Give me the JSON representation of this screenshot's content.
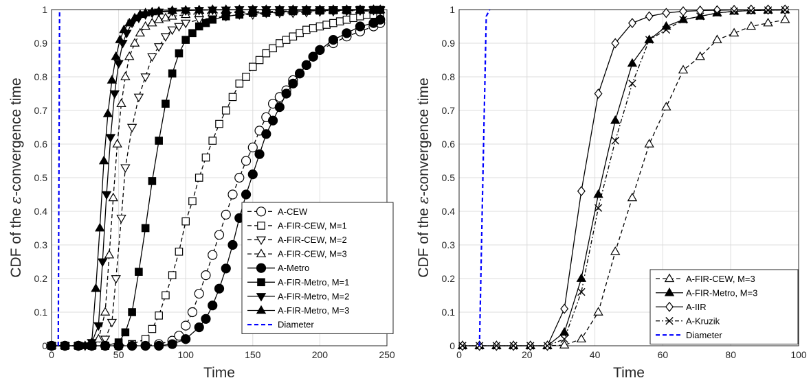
{
  "chart_data": [
    {
      "type": "line",
      "xlabel": "Time",
      "ylabel_prefix": "CDF of the ",
      "ylabel_eps": "ε",
      "ylabel_suffix": "-convergence time",
      "xlim": [
        0,
        250
      ],
      "ylim": [
        0,
        1
      ],
      "xticks": [
        "0",
        "50",
        "100",
        "150",
        "200",
        "250"
      ],
      "yticks": [
        "0",
        "0.1",
        "0.2",
        "0.3",
        "0.4",
        "0.5",
        "0.6",
        "0.7",
        "0.8",
        "0.9",
        "1"
      ],
      "grid": true,
      "legend_position": "bottom-right",
      "series": [
        {
          "name": "A-CEW",
          "dash": "dashed",
          "marker": "circle-open",
          "color": "#000000",
          "x": [
            0,
            10,
            20,
            30,
            40,
            50,
            60,
            70,
            80,
            90,
            95,
            100,
            105,
            110,
            115,
            120,
            125,
            130,
            135,
            140,
            145,
            150,
            155,
            160,
            165,
            170,
            175,
            180,
            185,
            190,
            195,
            200,
            210,
            220,
            230,
            240,
            245
          ],
          "y": [
            0,
            0,
            0,
            0,
            0,
            0,
            0,
            0,
            0.005,
            0.015,
            0.03,
            0.06,
            0.1,
            0.155,
            0.21,
            0.27,
            0.33,
            0.39,
            0.45,
            0.5,
            0.55,
            0.59,
            0.64,
            0.68,
            0.72,
            0.74,
            0.76,
            0.79,
            0.81,
            0.835,
            0.86,
            0.88,
            0.9,
            0.92,
            0.935,
            0.95,
            0.96
          ]
        },
        {
          "name": "A-FIR-CEW, M=1",
          "dash": "dashed",
          "marker": "square-open",
          "color": "#000000",
          "x": [
            0,
            10,
            20,
            30,
            40,
            50,
            60,
            70,
            75,
            80,
            85,
            90,
            95,
            100,
            105,
            110,
            115,
            120,
            125,
            130,
            135,
            140,
            145,
            150,
            155,
            160,
            165,
            170,
            175,
            180,
            185,
            190,
            195,
            200,
            205,
            210,
            215,
            220,
            225,
            230,
            235,
            240,
            245
          ],
          "y": [
            0,
            0,
            0,
            0,
            0,
            0,
            0.005,
            0.02,
            0.05,
            0.09,
            0.15,
            0.21,
            0.28,
            0.37,
            0.43,
            0.5,
            0.56,
            0.61,
            0.66,
            0.7,
            0.74,
            0.78,
            0.8,
            0.83,
            0.85,
            0.87,
            0.885,
            0.9,
            0.91,
            0.92,
            0.93,
            0.94,
            0.945,
            0.95,
            0.955,
            0.96,
            0.965,
            0.97,
            0.975,
            0.98,
            0.985,
            0.985,
            0.99
          ]
        },
        {
          "name": "A-FIR-CEW, M=2",
          "dash": "dashed",
          "marker": "triangle-down-open",
          "color": "#000000",
          "x": [
            0,
            10,
            20,
            30,
            40,
            45,
            48,
            52,
            55,
            60,
            65,
            70,
            75,
            80,
            85,
            90,
            95,
            100,
            110,
            120,
            130,
            140,
            150,
            160,
            170,
            180,
            190,
            200,
            210,
            220,
            230,
            240,
            245
          ],
          "y": [
            0,
            0,
            0,
            0,
            0.02,
            0.07,
            0.2,
            0.38,
            0.53,
            0.65,
            0.74,
            0.8,
            0.86,
            0.89,
            0.92,
            0.94,
            0.95,
            0.96,
            0.97,
            0.975,
            0.98,
            0.985,
            0.985,
            0.99,
            0.99,
            0.99,
            0.992,
            0.994,
            0.995,
            0.996,
            0.997,
            0.998,
            0.998
          ]
        },
        {
          "name": "A-FIR-CEW, M=3",
          "dash": "dashed",
          "marker": "triangle-up-open",
          "color": "#000000",
          "x": [
            0,
            10,
            20,
            30,
            35,
            40,
            43,
            46,
            49,
            52,
            55,
            58,
            62,
            66,
            70,
            75,
            80,
            85,
            90,
            100,
            110,
            120,
            130,
            140,
            150,
            160,
            170,
            180,
            190,
            200,
            210,
            220,
            230,
            240,
            245
          ],
          "y": [
            0,
            0,
            0,
            0,
            0.02,
            0.1,
            0.27,
            0.44,
            0.6,
            0.72,
            0.8,
            0.86,
            0.9,
            0.93,
            0.95,
            0.96,
            0.97,
            0.975,
            0.98,
            0.985,
            0.988,
            0.99,
            0.99,
            0.992,
            0.993,
            0.994,
            0.995,
            0.996,
            0.996,
            0.997,
            0.997,
            0.998,
            0.998,
            0.999,
            0.999
          ]
        },
        {
          "name": "A-Metro",
          "dash": "solid",
          "marker": "circle-filled",
          "color": "#000000",
          "x": [
            0,
            10,
            20,
            30,
            40,
            50,
            60,
            70,
            80,
            90,
            100,
            110,
            115,
            120,
            125,
            130,
            135,
            140,
            145,
            150,
            155,
            160,
            165,
            170,
            175,
            180,
            185,
            190,
            195,
            200,
            210,
            220,
            230,
            240,
            245
          ],
          "y": [
            0,
            0,
            0,
            0,
            0,
            0,
            0,
            0,
            0,
            0.005,
            0.02,
            0.055,
            0.08,
            0.12,
            0.17,
            0.23,
            0.3,
            0.38,
            0.45,
            0.51,
            0.57,
            0.63,
            0.67,
            0.71,
            0.75,
            0.78,
            0.81,
            0.835,
            0.86,
            0.88,
            0.91,
            0.93,
            0.95,
            0.96,
            0.97
          ]
        },
        {
          "name": "A-FIR-Metro, M=1",
          "dash": "solid",
          "marker": "square-filled",
          "color": "#000000",
          "x": [
            0,
            10,
            20,
            30,
            40,
            50,
            55,
            60,
            65,
            70,
            75,
            80,
            85,
            90,
            95,
            100,
            105,
            110,
            115,
            120,
            130,
            140,
            150,
            160,
            170,
            180,
            190,
            200,
            210,
            220,
            230,
            240,
            245
          ],
          "y": [
            0,
            0,
            0,
            0,
            0,
            0.01,
            0.04,
            0.1,
            0.22,
            0.35,
            0.49,
            0.61,
            0.72,
            0.81,
            0.87,
            0.91,
            0.93,
            0.95,
            0.96,
            0.97,
            0.98,
            0.985,
            0.99,
            0.99,
            0.993,
            0.995,
            0.996,
            0.997,
            0.998,
            0.998,
            0.999,
            0.999,
            0.999
          ]
        },
        {
          "name": "A-FIR-Metro, M=2",
          "dash": "solid",
          "marker": "triangle-down-filled",
          "color": "#000000",
          "x": [
            0,
            10,
            20,
            25,
            30,
            35,
            38,
            41,
            44,
            47,
            50,
            53,
            56,
            60,
            65,
            70,
            75,
            80,
            90,
            100,
            110,
            120,
            130,
            140,
            150,
            160,
            170,
            180,
            190,
            200,
            210,
            220,
            230,
            240,
            245
          ],
          "y": [
            0,
            0,
            0,
            0,
            0.01,
            0.06,
            0.25,
            0.45,
            0.62,
            0.75,
            0.84,
            0.9,
            0.93,
            0.96,
            0.975,
            0.985,
            0.99,
            0.993,
            0.995,
            0.997,
            0.998,
            0.999,
            0.999,
            1,
            1,
            1,
            1,
            1,
            1,
            1,
            1,
            1,
            1,
            1,
            1
          ]
        },
        {
          "name": "A-FIR-Metro, M=3",
          "dash": "solid",
          "marker": "triangle-up-filled",
          "color": "#000000",
          "x": [
            0,
            10,
            20,
            25,
            30,
            33,
            36,
            39,
            42,
            45,
            48,
            51,
            54,
            58,
            62,
            66,
            70,
            75,
            80,
            90,
            100,
            110,
            120,
            130,
            140,
            150,
            160,
            170,
            180,
            190,
            200,
            210,
            220,
            230,
            240,
            245
          ],
          "y": [
            0,
            0,
            0,
            0,
            0.01,
            0.17,
            0.35,
            0.55,
            0.69,
            0.79,
            0.86,
            0.91,
            0.94,
            0.96,
            0.975,
            0.985,
            0.99,
            0.993,
            0.995,
            0.997,
            0.998,
            0.999,
            1,
            1,
            1,
            1,
            1,
            1,
            1,
            1,
            1,
            1,
            1,
            1,
            1,
            1
          ]
        },
        {
          "name": "Diameter",
          "dash": "dashed",
          "marker": "none",
          "color": "#0000FF",
          "x": [
            5,
            5,
            6,
            6
          ],
          "y": [
            0,
            0.002,
            0.998,
            1
          ]
        }
      ]
    },
    {
      "type": "line",
      "xlabel": "Time",
      "ylabel_prefix": "CDF of the ",
      "ylabel_eps": "ε",
      "ylabel_suffix": "-convergence time",
      "xlim": [
        0,
        100
      ],
      "ylim": [
        0,
        1
      ],
      "xticks": [
        "0",
        "20",
        "40",
        "60",
        "80",
        "100"
      ],
      "yticks": [
        "0",
        "0.1",
        "0.2",
        "0.3",
        "0.4",
        "0.5",
        "0.6",
        "0.7",
        "0.8",
        "0.9",
        "1"
      ],
      "grid": true,
      "legend_position": "bottom-right",
      "series": [
        {
          "name": "A-FIR-CEW, M=3",
          "dash": "dashed",
          "marker": "triangle-up-open",
          "color": "#000000",
          "x": [
            1,
            6,
            11,
            16,
            21,
            26,
            31,
            36,
            41,
            46,
            51,
            56,
            61,
            66,
            71,
            76,
            81,
            86,
            91,
            96
          ],
          "y": [
            0,
            0,
            0,
            0,
            0,
            0,
            0.002,
            0.02,
            0.1,
            0.28,
            0.44,
            0.6,
            0.71,
            0.82,
            0.86,
            0.91,
            0.93,
            0.95,
            0.96,
            0.97
          ]
        },
        {
          "name": "A-FIR-Metro, M=3",
          "dash": "solid",
          "marker": "triangle-up-filled",
          "color": "#000000",
          "x": [
            1,
            6,
            11,
            16,
            21,
            26,
            31,
            36,
            41,
            46,
            51,
            56,
            61,
            66,
            71,
            76,
            81,
            86,
            91,
            96
          ],
          "y": [
            0,
            0,
            0,
            0,
            0,
            0,
            0.04,
            0.2,
            0.45,
            0.67,
            0.84,
            0.91,
            0.95,
            0.97,
            0.98,
            0.99,
            0.995,
            0.997,
            0.998,
            0.999
          ]
        },
        {
          "name": "A-IIR",
          "dash": "solid",
          "marker": "diamond-open",
          "color": "#000000",
          "x": [
            1,
            6,
            11,
            16,
            21,
            26,
            31,
            36,
            41,
            46,
            51,
            56,
            61,
            66,
            71,
            76,
            81,
            86,
            91,
            96
          ],
          "y": [
            0,
            0,
            0,
            0,
            0,
            0,
            0.11,
            0.46,
            0.75,
            0.9,
            0.96,
            0.98,
            0.99,
            0.995,
            0.997,
            0.998,
            0.999,
            1,
            1,
            1
          ]
        },
        {
          "name": "A-Kruzik",
          "dash": "dashdot",
          "marker": "x",
          "color": "#000000",
          "x": [
            1,
            6,
            11,
            16,
            21,
            26,
            31,
            36,
            41,
            46,
            51,
            56,
            61,
            66,
            71,
            76,
            81,
            86,
            91,
            96
          ],
          "y": [
            0,
            0,
            0,
            0,
            0,
            0,
            0.02,
            0.16,
            0.41,
            0.61,
            0.78,
            0.91,
            0.94,
            0.97,
            0.98,
            0.99,
            0.995,
            0.997,
            0.998,
            0.999
          ]
        },
        {
          "name": "Diameter",
          "dash": "dashed",
          "marker": "none",
          "color": "#0000FF",
          "x": [
            6,
            7,
            8,
            9
          ],
          "y": [
            0,
            0.5,
            0.98,
            1
          ]
        }
      ]
    }
  ]
}
